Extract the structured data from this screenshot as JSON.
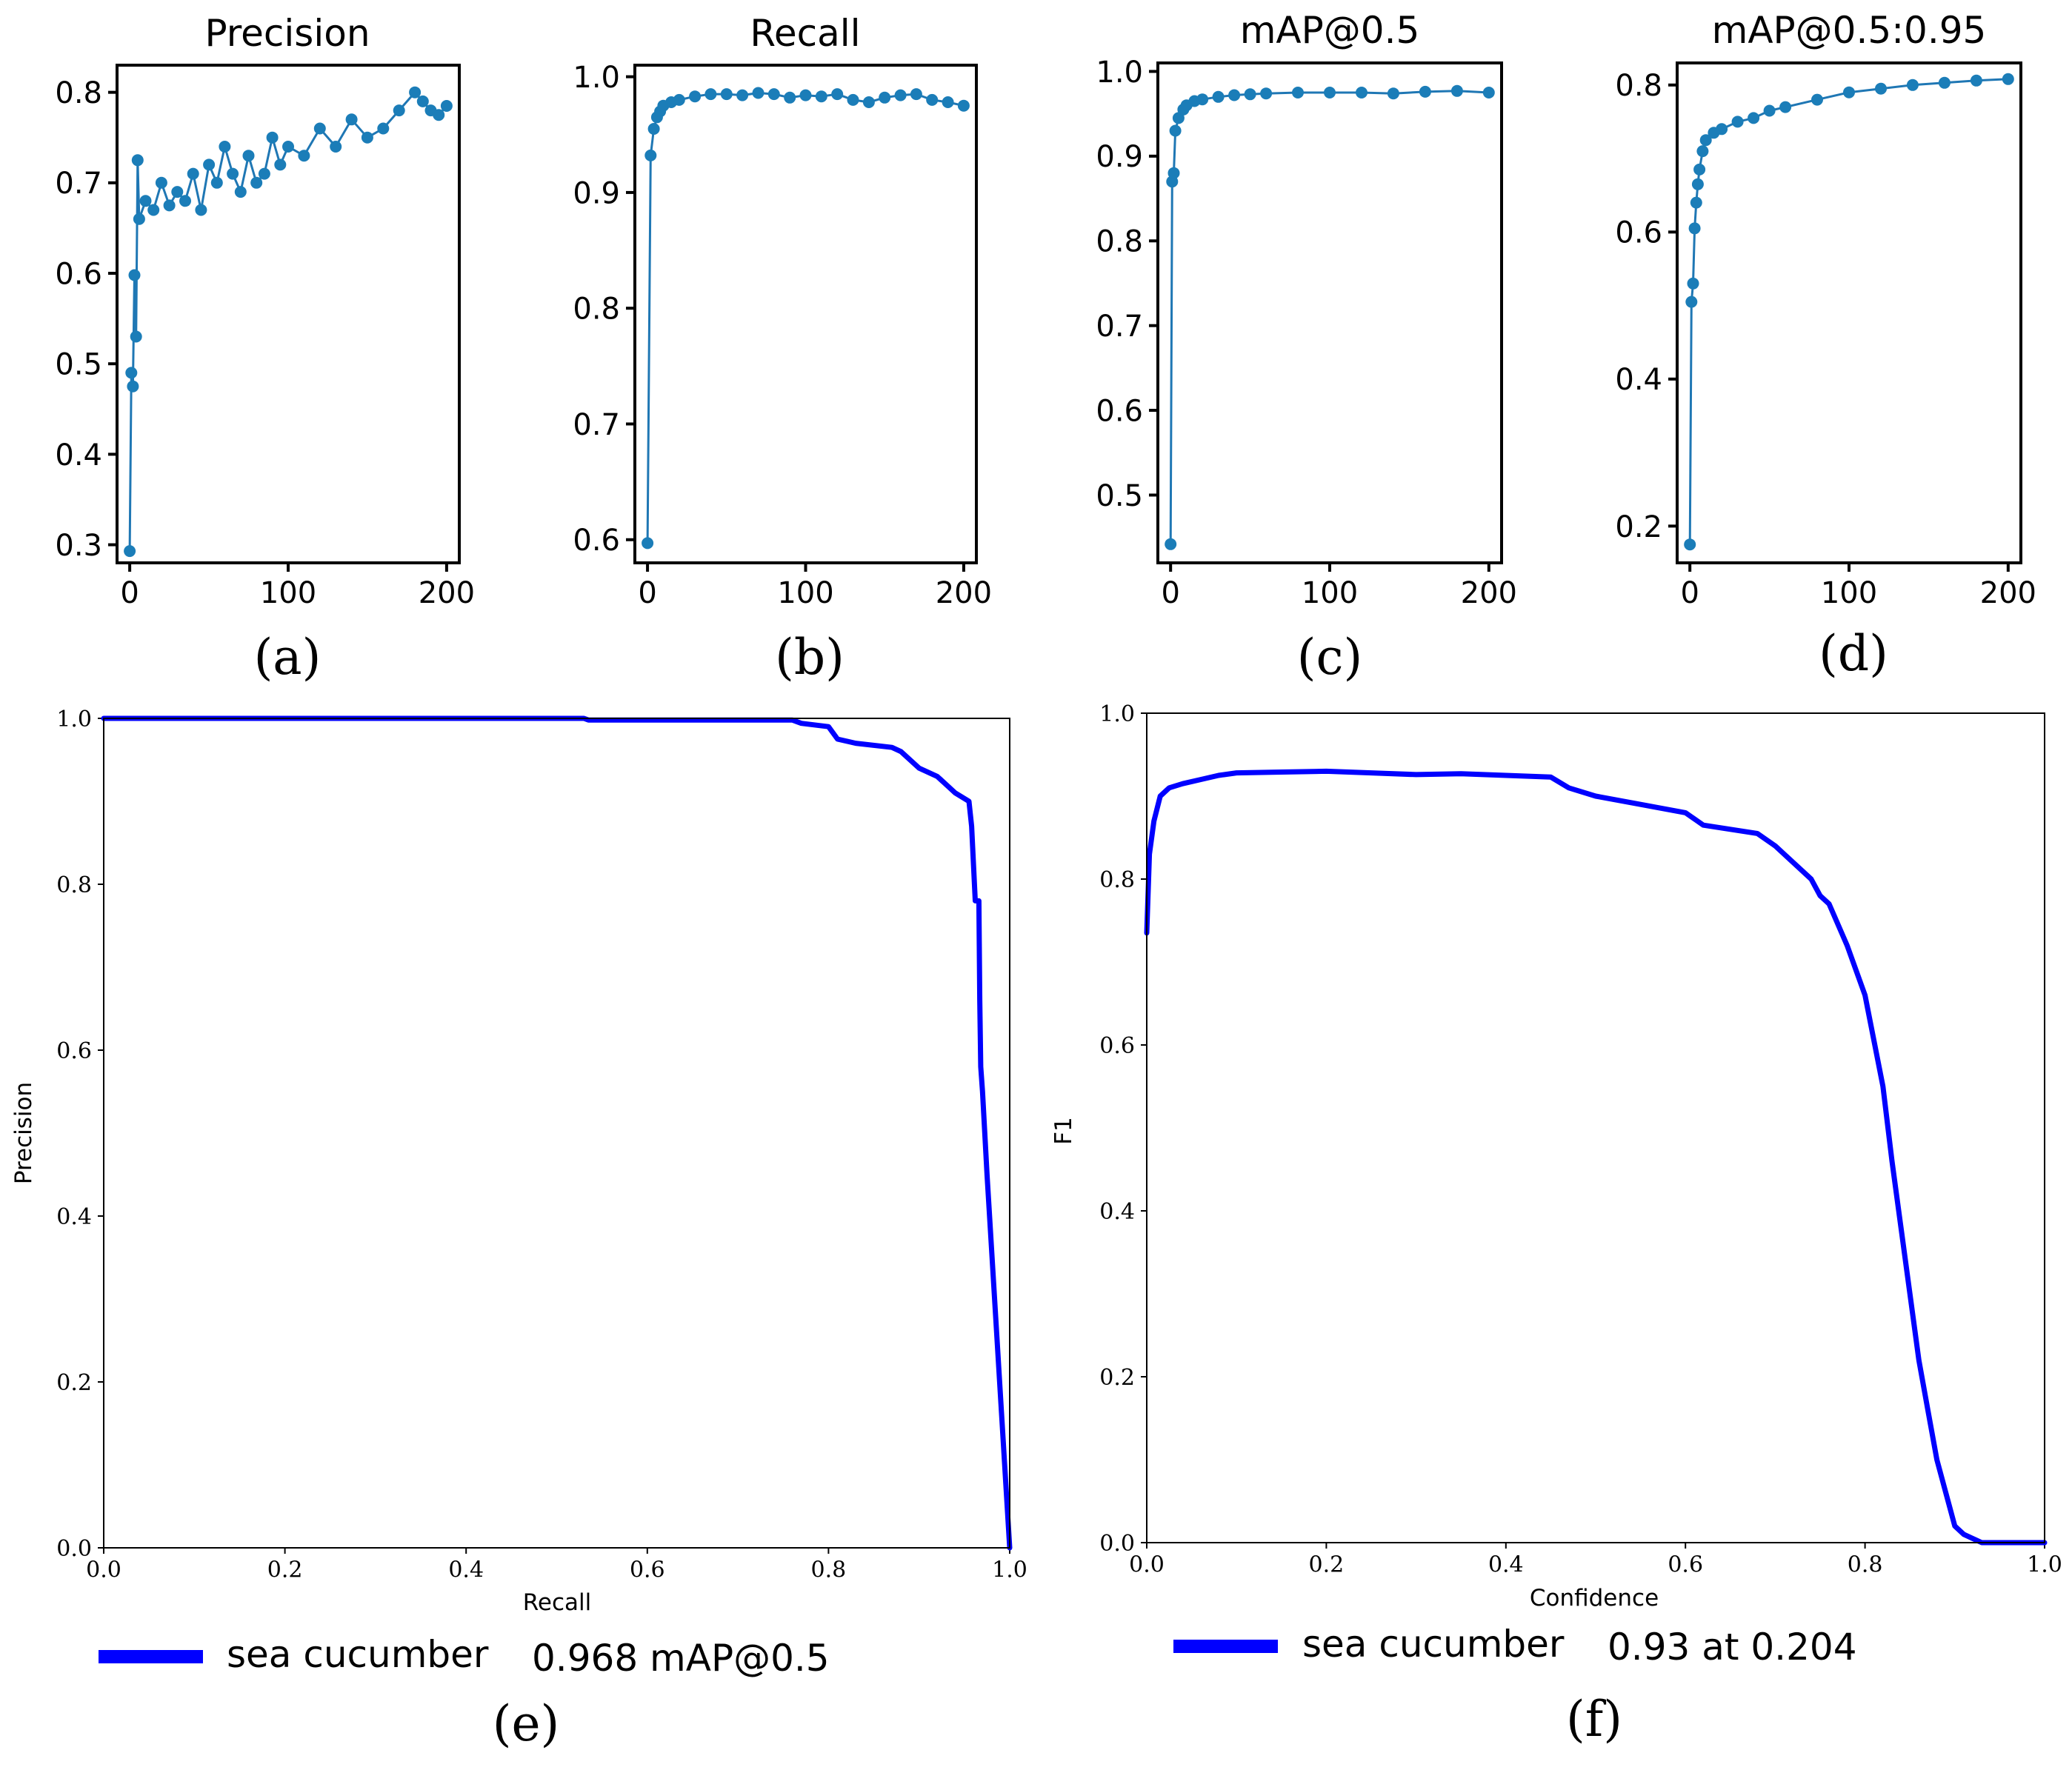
{
  "colors": {
    "small_line": "#1f77b4",
    "small_marker": "#1b7db8",
    "large_line": "#0000ff",
    "axis": "#000000",
    "background": "#ffffff"
  },
  "chart_data": [
    {
      "id": "a",
      "type": "line",
      "title": "Precision",
      "panel_label": "(a)",
      "xlim": [
        -8,
        208
      ],
      "ylim": [
        0.28,
        0.83
      ],
      "xticks": [
        0,
        100,
        200
      ],
      "xtick_labels": [
        "0",
        "100",
        "200"
      ],
      "yticks": [
        0.3,
        0.4,
        0.5,
        0.6,
        0.7,
        0.8
      ],
      "ytick_labels": [
        "0.3",
        "0.4",
        "0.5",
        "0.6",
        "0.7",
        "0.8"
      ],
      "series": [
        {
          "name": "precision",
          "x": [
            0,
            1,
            2,
            3,
            4,
            5,
            6,
            10,
            15,
            20,
            25,
            30,
            35,
            40,
            45,
            50,
            55,
            60,
            65,
            70,
            75,
            80,
            85,
            90,
            95,
            100,
            110,
            120,
            130,
            140,
            150,
            160,
            170,
            180,
            185,
            190,
            195,
            200
          ],
          "y": [
            0.293,
            0.49,
            0.475,
            0.598,
            0.53,
            0.725,
            0.66,
            0.68,
            0.67,
            0.7,
            0.675,
            0.69,
            0.68,
            0.71,
            0.67,
            0.72,
            0.7,
            0.74,
            0.71,
            0.69,
            0.73,
            0.7,
            0.71,
            0.75,
            0.72,
            0.74,
            0.73,
            0.76,
            0.74,
            0.77,
            0.75,
            0.76,
            0.78,
            0.8,
            0.79,
            0.78,
            0.775,
            0.785
          ]
        }
      ]
    },
    {
      "id": "b",
      "type": "line",
      "title": "Recall",
      "panel_label": "(b)",
      "xlim": [
        -8,
        208
      ],
      "ylim": [
        0.58,
        1.01
      ],
      "xticks": [
        0,
        100,
        200
      ],
      "xtick_labels": [
        "0",
        "100",
        "200"
      ],
      "yticks": [
        0.6,
        0.7,
        0.8,
        0.9,
        1.0
      ],
      "ytick_labels": [
        "0.6",
        "0.7",
        "0.8",
        "0.9",
        "1.0"
      ],
      "series": [
        {
          "name": "recall",
          "x": [
            0,
            2,
            4,
            6,
            8,
            10,
            15,
            20,
            30,
            40,
            50,
            60,
            70,
            80,
            90,
            100,
            110,
            120,
            130,
            140,
            150,
            160,
            170,
            180,
            190,
            200
          ],
          "y": [
            0.597,
            0.932,
            0.955,
            0.965,
            0.97,
            0.975,
            0.978,
            0.98,
            0.983,
            0.985,
            0.985,
            0.984,
            0.986,
            0.985,
            0.982,
            0.984,
            0.983,
            0.985,
            0.98,
            0.978,
            0.982,
            0.984,
            0.985,
            0.98,
            0.978,
            0.975
          ]
        }
      ]
    },
    {
      "id": "c",
      "type": "line",
      "title": "mAP@0.5",
      "panel_label": "(c)",
      "xlim": [
        -8,
        208
      ],
      "ylim": [
        0.42,
        1.01
      ],
      "xticks": [
        0,
        100,
        200
      ],
      "xtick_labels": [
        "0",
        "100",
        "200"
      ],
      "yticks": [
        0.5,
        0.6,
        0.7,
        0.8,
        0.9,
        1.0
      ],
      "ytick_labels": [
        "0.5",
        "0.6",
        "0.7",
        "0.8",
        "0.9",
        "1.0"
      ],
      "series": [
        {
          "name": "mAP@0.5",
          "x": [
            0,
            1,
            2,
            3,
            5,
            8,
            10,
            15,
            20,
            30,
            40,
            50,
            60,
            80,
            100,
            120,
            140,
            160,
            180,
            200
          ],
          "y": [
            0.442,
            0.87,
            0.88,
            0.93,
            0.945,
            0.955,
            0.96,
            0.965,
            0.967,
            0.97,
            0.972,
            0.973,
            0.974,
            0.975,
            0.975,
            0.975,
            0.974,
            0.976,
            0.977,
            0.975
          ]
        }
      ]
    },
    {
      "id": "d",
      "type": "line",
      "title": "mAP@0.5:0.95",
      "panel_label": "(d)",
      "xlim": [
        -8,
        208
      ],
      "ylim": [
        0.15,
        0.83
      ],
      "xticks": [
        0,
        100,
        200
      ],
      "xtick_labels": [
        "0",
        "100",
        "200"
      ],
      "yticks": [
        0.2,
        0.4,
        0.6,
        0.8
      ],
      "ytick_labels": [
        "0.2",
        "0.4",
        "0.6",
        "0.8"
      ],
      "series": [
        {
          "name": "mAP@0.5:0.95",
          "x": [
            0,
            1,
            2,
            3,
            4,
            5,
            6,
            8,
            10,
            15,
            20,
            30,
            40,
            50,
            60,
            80,
            100,
            120,
            140,
            160,
            180,
            200
          ],
          "y": [
            0.175,
            0.505,
            0.53,
            0.605,
            0.64,
            0.665,
            0.685,
            0.71,
            0.725,
            0.735,
            0.74,
            0.75,
            0.755,
            0.765,
            0.77,
            0.78,
            0.79,
            0.795,
            0.8,
            0.803,
            0.806,
            0.808
          ]
        }
      ]
    },
    {
      "id": "e",
      "type": "line",
      "panel_label": "(e)",
      "title": "",
      "xlabel": "Recall",
      "ylabel": "Precision",
      "xlim": [
        0,
        1
      ],
      "ylim": [
        0,
        1
      ],
      "xticks": [
        0,
        0.2,
        0.4,
        0.6,
        0.8,
        1.0
      ],
      "xtick_labels": [
        "0.0",
        "0.2",
        "0.4",
        "0.6",
        "0.8",
        "1.0"
      ],
      "yticks": [
        0,
        0.2,
        0.4,
        0.6,
        0.8,
        1.0
      ],
      "ytick_labels": [
        "0.0",
        "0.2",
        "0.4",
        "0.6",
        "0.8",
        "1.0"
      ],
      "legend": {
        "name": "sea cucumber",
        "value": "0.968 mAP@0.5"
      },
      "series": [
        {
          "name": "sea cucumber 0.968 mAP@0.5",
          "x": [
            0,
            0.3,
            0.53,
            0.535,
            0.76,
            0.77,
            0.8,
            0.81,
            0.83,
            0.87,
            0.88,
            0.9,
            0.92,
            0.94,
            0.955,
            0.958,
            0.962,
            0.966,
            0.967,
            0.968,
            0.97,
            0.975,
            1.0
          ],
          "y": [
            1.0,
            1.0,
            1.0,
            0.998,
            0.998,
            0.994,
            0.99,
            0.975,
            0.97,
            0.965,
            0.96,
            0.94,
            0.93,
            0.91,
            0.9,
            0.87,
            0.78,
            0.78,
            0.66,
            0.58,
            0.55,
            0.45,
            0.0
          ]
        }
      ]
    },
    {
      "id": "f",
      "type": "line",
      "panel_label": "(f)",
      "title": "",
      "xlabel": "Confidence",
      "ylabel": "F1",
      "xlim": [
        0,
        1
      ],
      "ylim": [
        0,
        1
      ],
      "xticks": [
        0,
        0.2,
        0.4,
        0.6,
        0.8,
        1.0
      ],
      "xtick_labels": [
        "0.0",
        "0.2",
        "0.4",
        "0.6",
        "0.8",
        "1.0"
      ],
      "yticks": [
        0,
        0.2,
        0.4,
        0.6,
        0.8,
        1.0
      ],
      "ytick_labels": [
        "0.0",
        "0.2",
        "0.4",
        "0.6",
        "0.8",
        "1.0"
      ],
      "legend": {
        "name": "sea cucumber",
        "value": "0.93 at 0.204"
      },
      "series": [
        {
          "name": "sea cucumber 0.93 at 0.204",
          "x": [
            0,
            0.003,
            0.008,
            0.015,
            0.025,
            0.04,
            0.06,
            0.08,
            0.1,
            0.15,
            0.2,
            0.25,
            0.3,
            0.35,
            0.4,
            0.45,
            0.47,
            0.5,
            0.55,
            0.6,
            0.62,
            0.65,
            0.68,
            0.7,
            0.72,
            0.74,
            0.75,
            0.76,
            0.78,
            0.8,
            0.82,
            0.83,
            0.84,
            0.85,
            0.86,
            0.87,
            0.88,
            0.89,
            0.9,
            0.91,
            0.92,
            0.93,
            1.0
          ],
          "y": [
            0.735,
            0.83,
            0.87,
            0.9,
            0.91,
            0.915,
            0.92,
            0.925,
            0.928,
            0.929,
            0.93,
            0.928,
            0.926,
            0.927,
            0.925,
            0.923,
            0.91,
            0.9,
            0.89,
            0.88,
            0.865,
            0.86,
            0.855,
            0.84,
            0.82,
            0.8,
            0.78,
            0.77,
            0.72,
            0.66,
            0.55,
            0.46,
            0.38,
            0.3,
            0.22,
            0.16,
            0.1,
            0.06,
            0.02,
            0.01,
            0.005,
            0.0,
            0.0
          ]
        }
      ]
    }
  ]
}
